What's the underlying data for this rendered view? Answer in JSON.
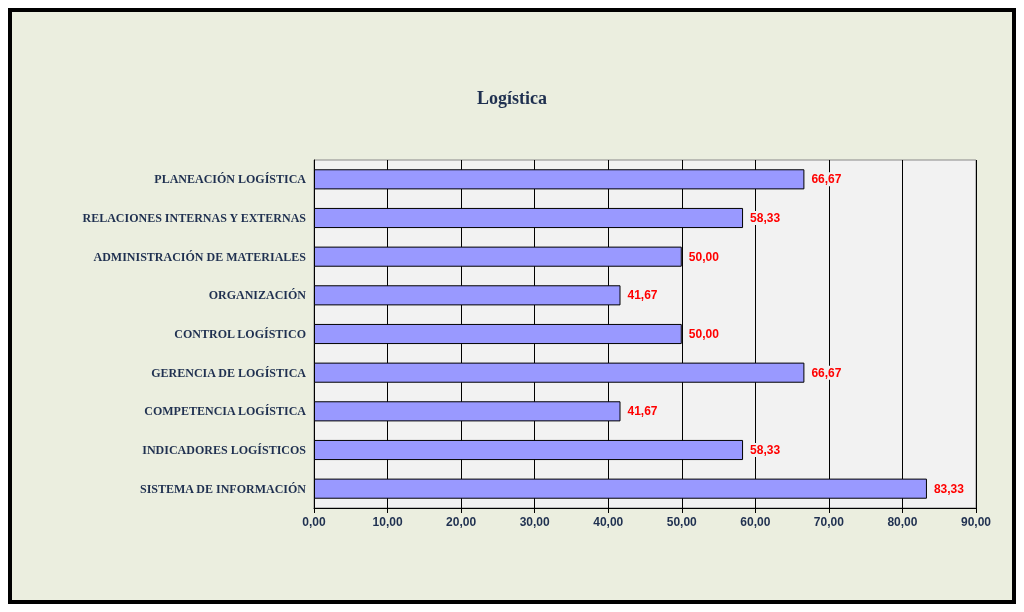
{
  "chart_data": {
    "type": "bar",
    "title": "Logística",
    "orientation": "horizontal",
    "categories": [
      "PLANEACIÓN LOGÍSTICA",
      "RELACIONES INTERNAS Y EXTERNAS",
      "ADMINISTRACIÓN DE MATERIALES",
      "ORGANIZACIÓN",
      "CONTROL LOGÍSTICO",
      "GERENCIA DE LOGÍSTICA",
      "COMPETENCIA LOGÍSTICA",
      "INDICADORES LOGÍSTICOS",
      "SISTEMA DE INFORMACIÓN"
    ],
    "values": [
      66.67,
      58.33,
      50.0,
      41.67,
      50.0,
      66.67,
      41.67,
      58.33,
      83.33
    ],
    "value_labels": [
      "66,67",
      "58,33",
      "50,00",
      "41,67",
      "50,00",
      "66,67",
      "41,67",
      "58,33",
      "83,33"
    ],
    "color": "#9999ff",
    "xlim": [
      0,
      90
    ],
    "xticks": [
      {
        "value": 0,
        "label": "0,00"
      },
      {
        "value": 10,
        "label": "10,00"
      },
      {
        "value": 20,
        "label": "20,00"
      },
      {
        "value": 30,
        "label": "30,00"
      },
      {
        "value": 40,
        "label": "40,00"
      },
      {
        "value": 50,
        "label": "50,00"
      },
      {
        "value": 60,
        "label": "60,00"
      },
      {
        "value": 70,
        "label": "70,00"
      },
      {
        "value": 80,
        "label": "80,00"
      },
      {
        "value": 90,
        "label": "90,00"
      }
    ],
    "grid": "x"
  }
}
